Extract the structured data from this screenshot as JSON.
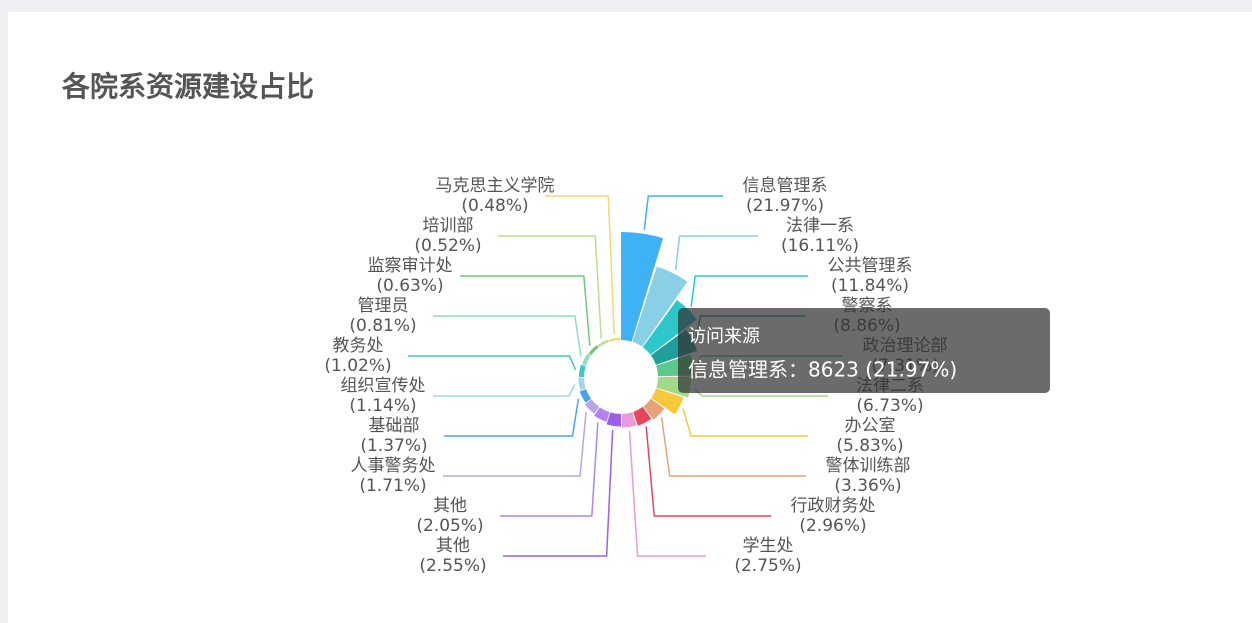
{
  "title": "各院系资源建设占比",
  "chart_data": {
    "type": "pie",
    "rose": true,
    "categories": [
      "信息管理系",
      "法律一系",
      "公共管理系",
      "警察系",
      "政治理论部",
      "法律二系",
      "办公室",
      "警体训练部",
      "行政财务处",
      "学生处",
      "其他",
      "其他",
      "人事警务处",
      "基础部",
      "组织宣传处",
      "教务处",
      "管理员",
      "监察审计处",
      "培训部",
      "马克思主义学院"
    ],
    "values": [
      21.97,
      16.11,
      11.84,
      8.86,
      7.31,
      6.73,
      5.83,
      3.36,
      2.96,
      2.75,
      2.55,
      2.05,
      1.71,
      1.37,
      1.14,
      1.02,
      0.81,
      0.63,
      0.52,
      0.48
    ],
    "value_labels": [
      "(21.97%)",
      "(16.11%)",
      "(11.84%)",
      "(8.86%)",
      "(7.31%)",
      "(6.73%)",
      "(5.83%)",
      "(3.36%)",
      "(2.96%)",
      "(2.75%)",
      "(2.55%)",
      "(2.05%)",
      "(1.71%)",
      "(1.37%)",
      "(1.14%)",
      "(1.02%)",
      "(0.81%)",
      "(0.63%)",
      "(0.52%)",
      "(0.48%)"
    ],
    "colors": [
      "#3fb1f5",
      "#89cfe6",
      "#2ec7c9",
      "#1f9e9a",
      "#5cc98a",
      "#a3d98b",
      "#f7c93a",
      "#e8a279",
      "#e6455c",
      "#e89ad9",
      "#9a60e6",
      "#b183f0",
      "#b7a6ea",
      "#4aa3e8",
      "#a6d3f0",
      "#3fc5c5",
      "#93dcc4",
      "#6cc97a",
      "#b8e08c",
      "#f5d76e"
    ],
    "tooltip": {
      "title": "访问来源",
      "text": "信息管理系：8623 (21.97%)"
    }
  }
}
